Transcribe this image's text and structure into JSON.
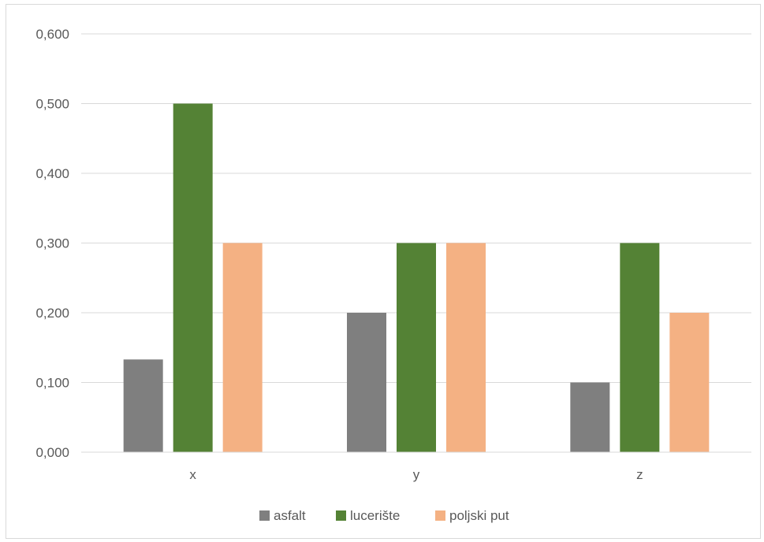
{
  "chart_data": {
    "type": "bar",
    "categories": [
      "x",
      "y",
      "z"
    ],
    "series": [
      {
        "name": "asfalt",
        "values": [
          0.133,
          0.2,
          0.1
        ],
        "color": "#7f7f7f"
      },
      {
        "name": "lucerište",
        "values": [
          0.5,
          0.3,
          0.3
        ],
        "color": "#548235"
      },
      {
        "name": "poljski put",
        "values": [
          0.3,
          0.3,
          0.2
        ],
        "color": "#f4b183"
      }
    ],
    "title": "",
    "xlabel": "",
    "ylabel": "",
    "ylim": [
      0,
      0.6
    ],
    "yticks": [
      "0,000",
      "0,100",
      "0,200",
      "0,300",
      "0,400",
      "0,500",
      "0,600"
    ],
    "grid": true,
    "legend": "bottom"
  }
}
